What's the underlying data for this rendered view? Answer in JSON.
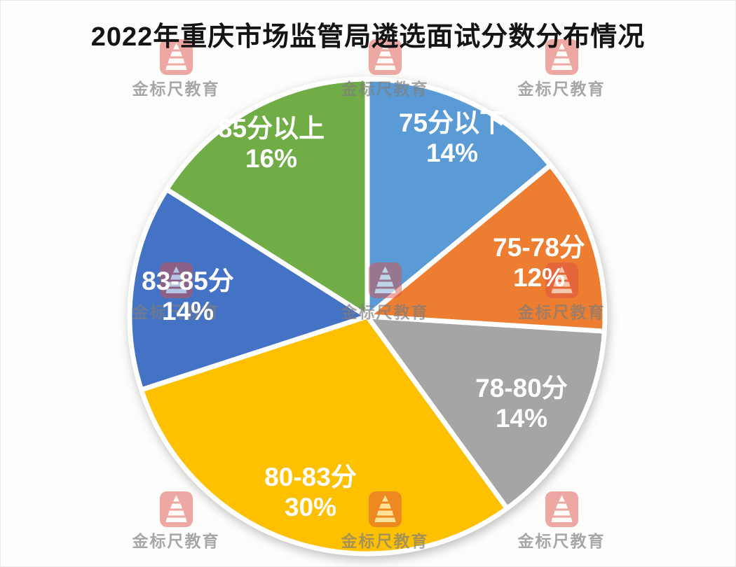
{
  "title": "2022年重庆市场监管局遴选面试分数分布情况",
  "watermark": {
    "text": "金标尺教育",
    "logo_color": "#dd4f47"
  },
  "chart_data": {
    "type": "pie",
    "title": "2022年重庆市场监管局遴选面试分数分布情况",
    "categories": [
      "75分以下",
      "75-78分",
      "78-80分",
      "80-83分",
      "83-85分",
      "85分以上"
    ],
    "values": [
      14,
      12,
      14,
      30,
      14,
      16
    ],
    "unit": "%",
    "colors": [
      "#5b9bd5",
      "#ed7d31",
      "#a5a5a5",
      "#ffc000",
      "#4472c4",
      "#70ad47"
    ],
    "start_angle_deg": 0,
    "direction": "clockwise",
    "legend": "none",
    "slice_border_color": "#ffffff",
    "labels_inside": true
  }
}
